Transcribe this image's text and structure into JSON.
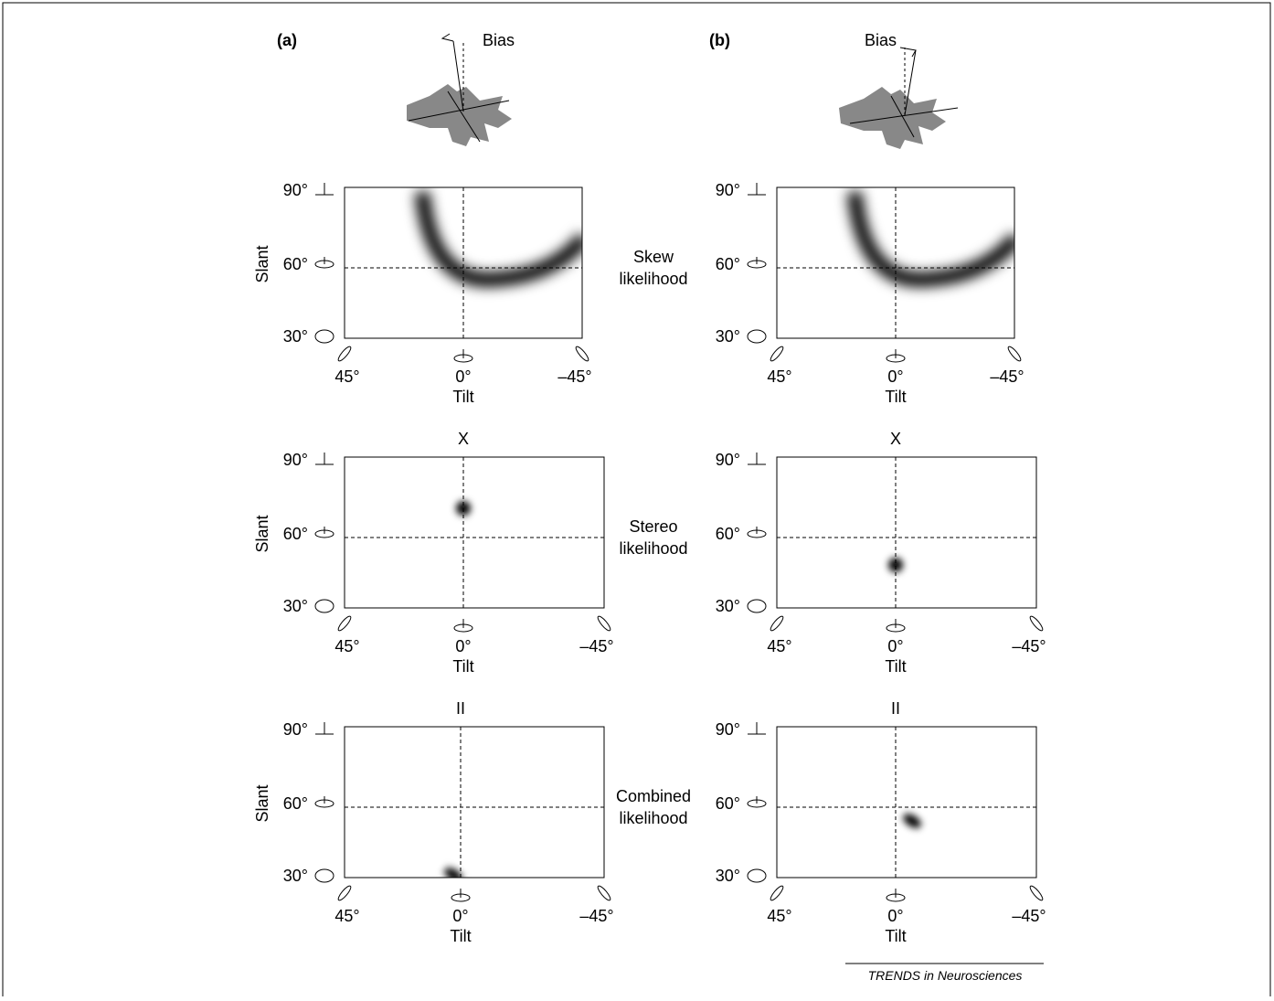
{
  "panels": [
    {
      "label": "(a)",
      "bias": "Bias",
      "plots": [
        {
          "y_label": "Slant",
          "y_ticks": [
            "90°",
            "60°",
            "30°"
          ],
          "x_ticks": [
            "45°",
            "0°",
            "–45°"
          ],
          "x_label": "Tilt"
        },
        {
          "operator": "X",
          "y_label": "Slant",
          "y_ticks": [
            "90°",
            "60°",
            "30°"
          ],
          "x_ticks": [
            "45°",
            "0°",
            "–45°"
          ],
          "x_label": "Tilt"
        },
        {
          "operator": "II",
          "y_label": "Slant",
          "y_ticks": [
            "90°",
            "60°",
            "30°"
          ],
          "x_ticks": [
            "45°",
            "0°",
            "–45°"
          ],
          "x_label": "Tilt"
        }
      ]
    },
    {
      "label": "(b)",
      "bias": "Bias",
      "plots": [
        {
          "y_ticks": [
            "90°",
            "60°",
            "30°"
          ],
          "x_ticks": [
            "45°",
            "0°",
            "–45°"
          ],
          "x_label": "Tilt"
        },
        {
          "operator": "X",
          "y_ticks": [
            "90°",
            "60°",
            "30°"
          ],
          "x_ticks": [
            "45°",
            "0°",
            "–45°"
          ],
          "x_label": "Tilt"
        },
        {
          "operator": "II",
          "y_ticks": [
            "90°",
            "60°",
            "30°"
          ],
          "x_ticks": [
            "45°",
            "0°",
            "–45°"
          ],
          "x_label": "Tilt"
        }
      ]
    }
  ],
  "row_labels": [
    [
      "Skew",
      "likelihood"
    ],
    [
      "Stereo",
      "likelihood"
    ],
    [
      "Combined",
      "likelihood"
    ]
  ],
  "footer": "TRENDS in Neurosciences"
}
